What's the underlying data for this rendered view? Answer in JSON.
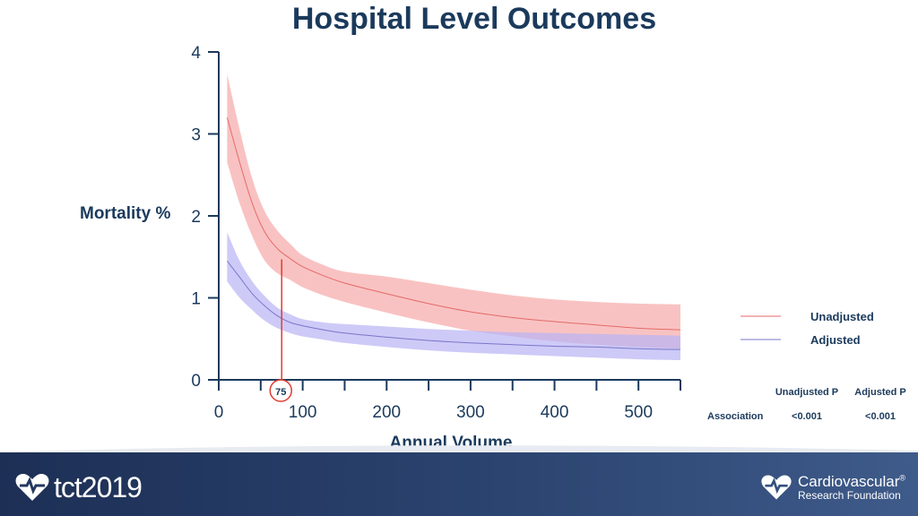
{
  "slide": {
    "title": "Hospital Level Outcomes"
  },
  "chart_data": {
    "type": "line",
    "title": "Hospital Level Outcomes",
    "xlabel": "Annual Volume",
    "ylabel": "Mortality %",
    "xlim": [
      0,
      550
    ],
    "ylim": [
      0,
      4
    ],
    "x_ticks": [
      0,
      100,
      200,
      300,
      400,
      500
    ],
    "x_minor_ticks": [
      0,
      50,
      100,
      150,
      200,
      250,
      300,
      350,
      400,
      450,
      500,
      550
    ],
    "y_ticks": [
      0,
      1,
      2,
      3,
      4
    ],
    "annotation": {
      "label": "75",
      "x": 75,
      "y_top": 1.47,
      "color": "#e03c31"
    },
    "series": [
      {
        "name": "Unadjusted",
        "color": "#e46a6a",
        "band_color": "#f7a8a8",
        "x": [
          10,
          25,
          40,
          55,
          70,
          85,
          100,
          125,
          150,
          200,
          250,
          300,
          350,
          400,
          450,
          500,
          550
        ],
        "y": [
          3.2,
          2.65,
          2.15,
          1.8,
          1.6,
          1.48,
          1.38,
          1.27,
          1.18,
          1.05,
          0.93,
          0.83,
          0.76,
          0.71,
          0.67,
          0.63,
          0.61
        ],
        "lower": [
          2.65,
          2.15,
          1.75,
          1.45,
          1.3,
          1.22,
          1.13,
          1.03,
          0.95,
          0.82,
          0.7,
          0.6,
          0.53,
          0.47,
          0.43,
          0.4,
          0.38
        ],
        "upper": [
          3.73,
          3.05,
          2.45,
          2.05,
          1.82,
          1.66,
          1.52,
          1.4,
          1.32,
          1.26,
          1.18,
          1.1,
          1.03,
          0.98,
          0.95,
          0.93,
          0.92
        ]
      },
      {
        "name": "Adjusted",
        "color": "#7a76c9",
        "band_color": "#b8b4f5",
        "x": [
          10,
          25,
          40,
          55,
          70,
          85,
          100,
          125,
          150,
          200,
          250,
          300,
          350,
          400,
          450,
          500,
          550
        ],
        "y": [
          1.45,
          1.25,
          1.05,
          0.9,
          0.78,
          0.7,
          0.66,
          0.61,
          0.57,
          0.52,
          0.48,
          0.45,
          0.43,
          0.41,
          0.4,
          0.38,
          0.37
        ],
        "lower": [
          1.2,
          1.0,
          0.85,
          0.72,
          0.63,
          0.57,
          0.53,
          0.49,
          0.45,
          0.4,
          0.36,
          0.33,
          0.31,
          0.29,
          0.27,
          0.25,
          0.24
        ],
        "upper": [
          1.8,
          1.45,
          1.2,
          1.02,
          0.88,
          0.8,
          0.74,
          0.7,
          0.68,
          0.65,
          0.62,
          0.6,
          0.58,
          0.57,
          0.56,
          0.55,
          0.54
        ]
      }
    ],
    "legend": [
      "Unadjusted",
      "Adjusted"
    ],
    "pvalue_table": {
      "headers": [
        "Unadjusted P",
        "Adjusted P"
      ],
      "rows": [
        {
          "label": "Association",
          "values": [
            "<0.001",
            "<0.001"
          ]
        }
      ]
    }
  },
  "footer": {
    "left_logo": "tct2019",
    "right_logo_line1": "Cardiovascular",
    "right_logo_reg": "®",
    "right_logo_line2": "Research Foundation",
    "heart_icon": "heart-logo-icon"
  }
}
